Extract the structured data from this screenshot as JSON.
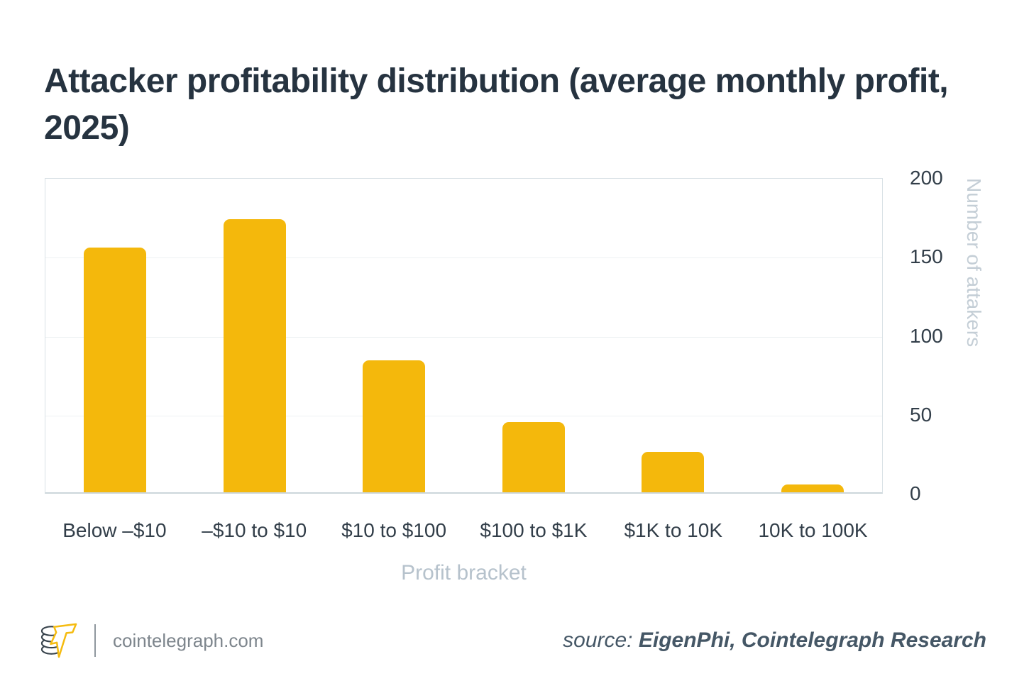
{
  "title": "Attacker profitability distribution (average monthly profit, 2025)",
  "chart_data": {
    "type": "bar",
    "categories": [
      "Below –$10",
      "–$10 to $10",
      "$10 to $100",
      "$100 to $1K",
      "$1K to 10K",
      "10K to 100K"
    ],
    "values": [
      156,
      174,
      84,
      45,
      26,
      5
    ],
    "title": "Attacker profitability distribution (average monthly profit, 2025)",
    "xlabel": "Profit bracket",
    "ylabel": "Number of attakers",
    "ylim": [
      0,
      200
    ],
    "yticks": [
      0,
      50,
      100,
      150,
      200
    ],
    "y_axis_side": "right",
    "grid": true,
    "bar_color": "#F4B80C"
  },
  "footer": {
    "site": "cointelegraph.com",
    "source_prefix": "source:",
    "source_value": "EigenPhi, Cointelegraph Research"
  },
  "colors": {
    "accent_yellow": "#F4B80C",
    "title_text": "#263340",
    "tick_text": "#323e49",
    "muted_text": "#b6c2cc",
    "frame_border": "#d9e1e5",
    "gridline": "#edf1f3",
    "source_text": "#455766"
  }
}
